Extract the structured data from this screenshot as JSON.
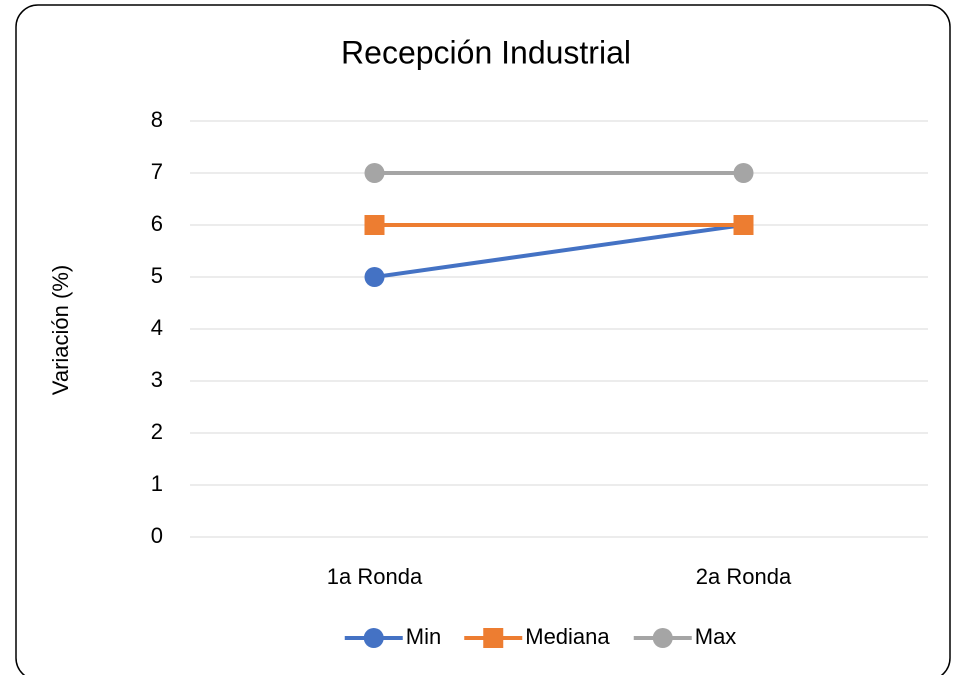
{
  "chart_data": {
    "type": "line",
    "title": "Recepción Industrial",
    "y_label": "Variación (%)",
    "categories": [
      "1a Ronda",
      "2a Ronda"
    ],
    "series": [
      {
        "name": "Min",
        "color": "#4472c4",
        "marker": "circle",
        "values": [
          5,
          6
        ]
      },
      {
        "name": "Mediana",
        "color": "#ed7d31",
        "marker": "square",
        "values": [
          6,
          6
        ]
      },
      {
        "name": "Max",
        "color": "#a5a5a5",
        "marker": "circle",
        "values": [
          7,
          7
        ]
      }
    ],
    "ylim": [
      0,
      8
    ],
    "yticks": [
      0,
      1,
      2,
      3,
      4,
      5,
      6,
      7,
      8
    ],
    "grid": true,
    "legend": "bottom"
  }
}
